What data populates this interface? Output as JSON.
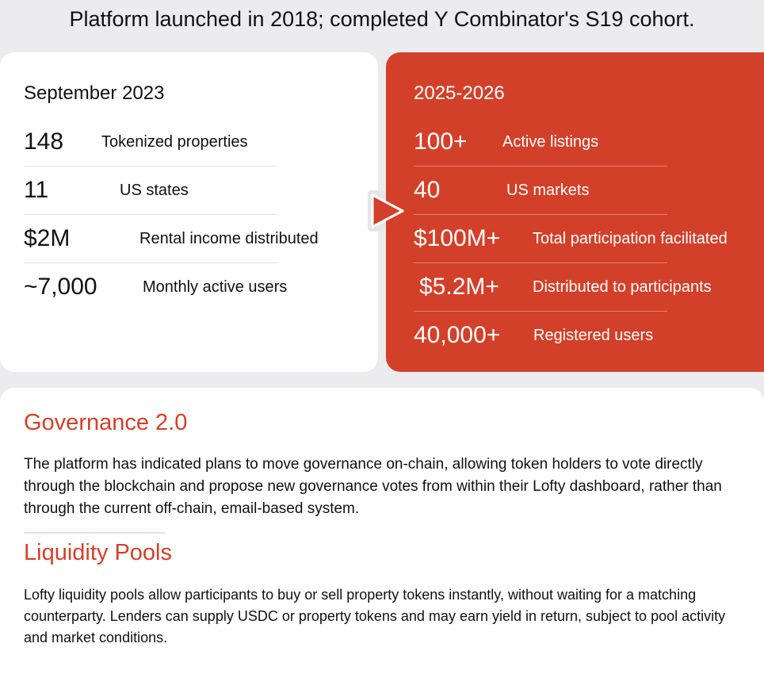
{
  "headline": "Platform launched in 2018; completed Y Combinator's S19 cohort.",
  "left_card": {
    "title": "September 2023",
    "stats": [
      {
        "value": "148",
        "label": "Tokenized properties"
      },
      {
        "value": "11",
        "label": "US states"
      },
      {
        "value": "$2M",
        "label": "Rental income distributed"
      },
      {
        "value": "~7,000",
        "label": "Monthly active users"
      }
    ]
  },
  "right_card": {
    "title": "2025-2026",
    "stats": [
      {
        "value": "100+",
        "label": "Active listings"
      },
      {
        "value": "40",
        "label": "US markets"
      },
      {
        "value": "$100M+",
        "label": "Total participation facilitated"
      },
      {
        "value": "$5.2M+",
        "label": "Distributed to participants"
      },
      {
        "value": "40,000+",
        "label": "Registered users"
      }
    ]
  },
  "sections": [
    {
      "title": "Governance 2.0",
      "body": "The platform has indicated plans to move governance on-chain, allowing token holders to vote directly through the blockchain and propose new governance votes from within their Lofty dashboard, rather than through the current off-chain, email-based system."
    },
    {
      "title": "Liquidity Pools",
      "body": "Lofty liquidity pools allow participants to buy or sell property tokens instantly, without waiting for a matching counterparty. Lenders can supply USDC or property tokens and may earn yield in return, subject to pool activity and market conditions."
    }
  ],
  "colors": {
    "accent": "#d3402a",
    "background": "#ececee",
    "card": "#ffffff"
  },
  "icons": {
    "transition": "play-arrow-icon"
  }
}
